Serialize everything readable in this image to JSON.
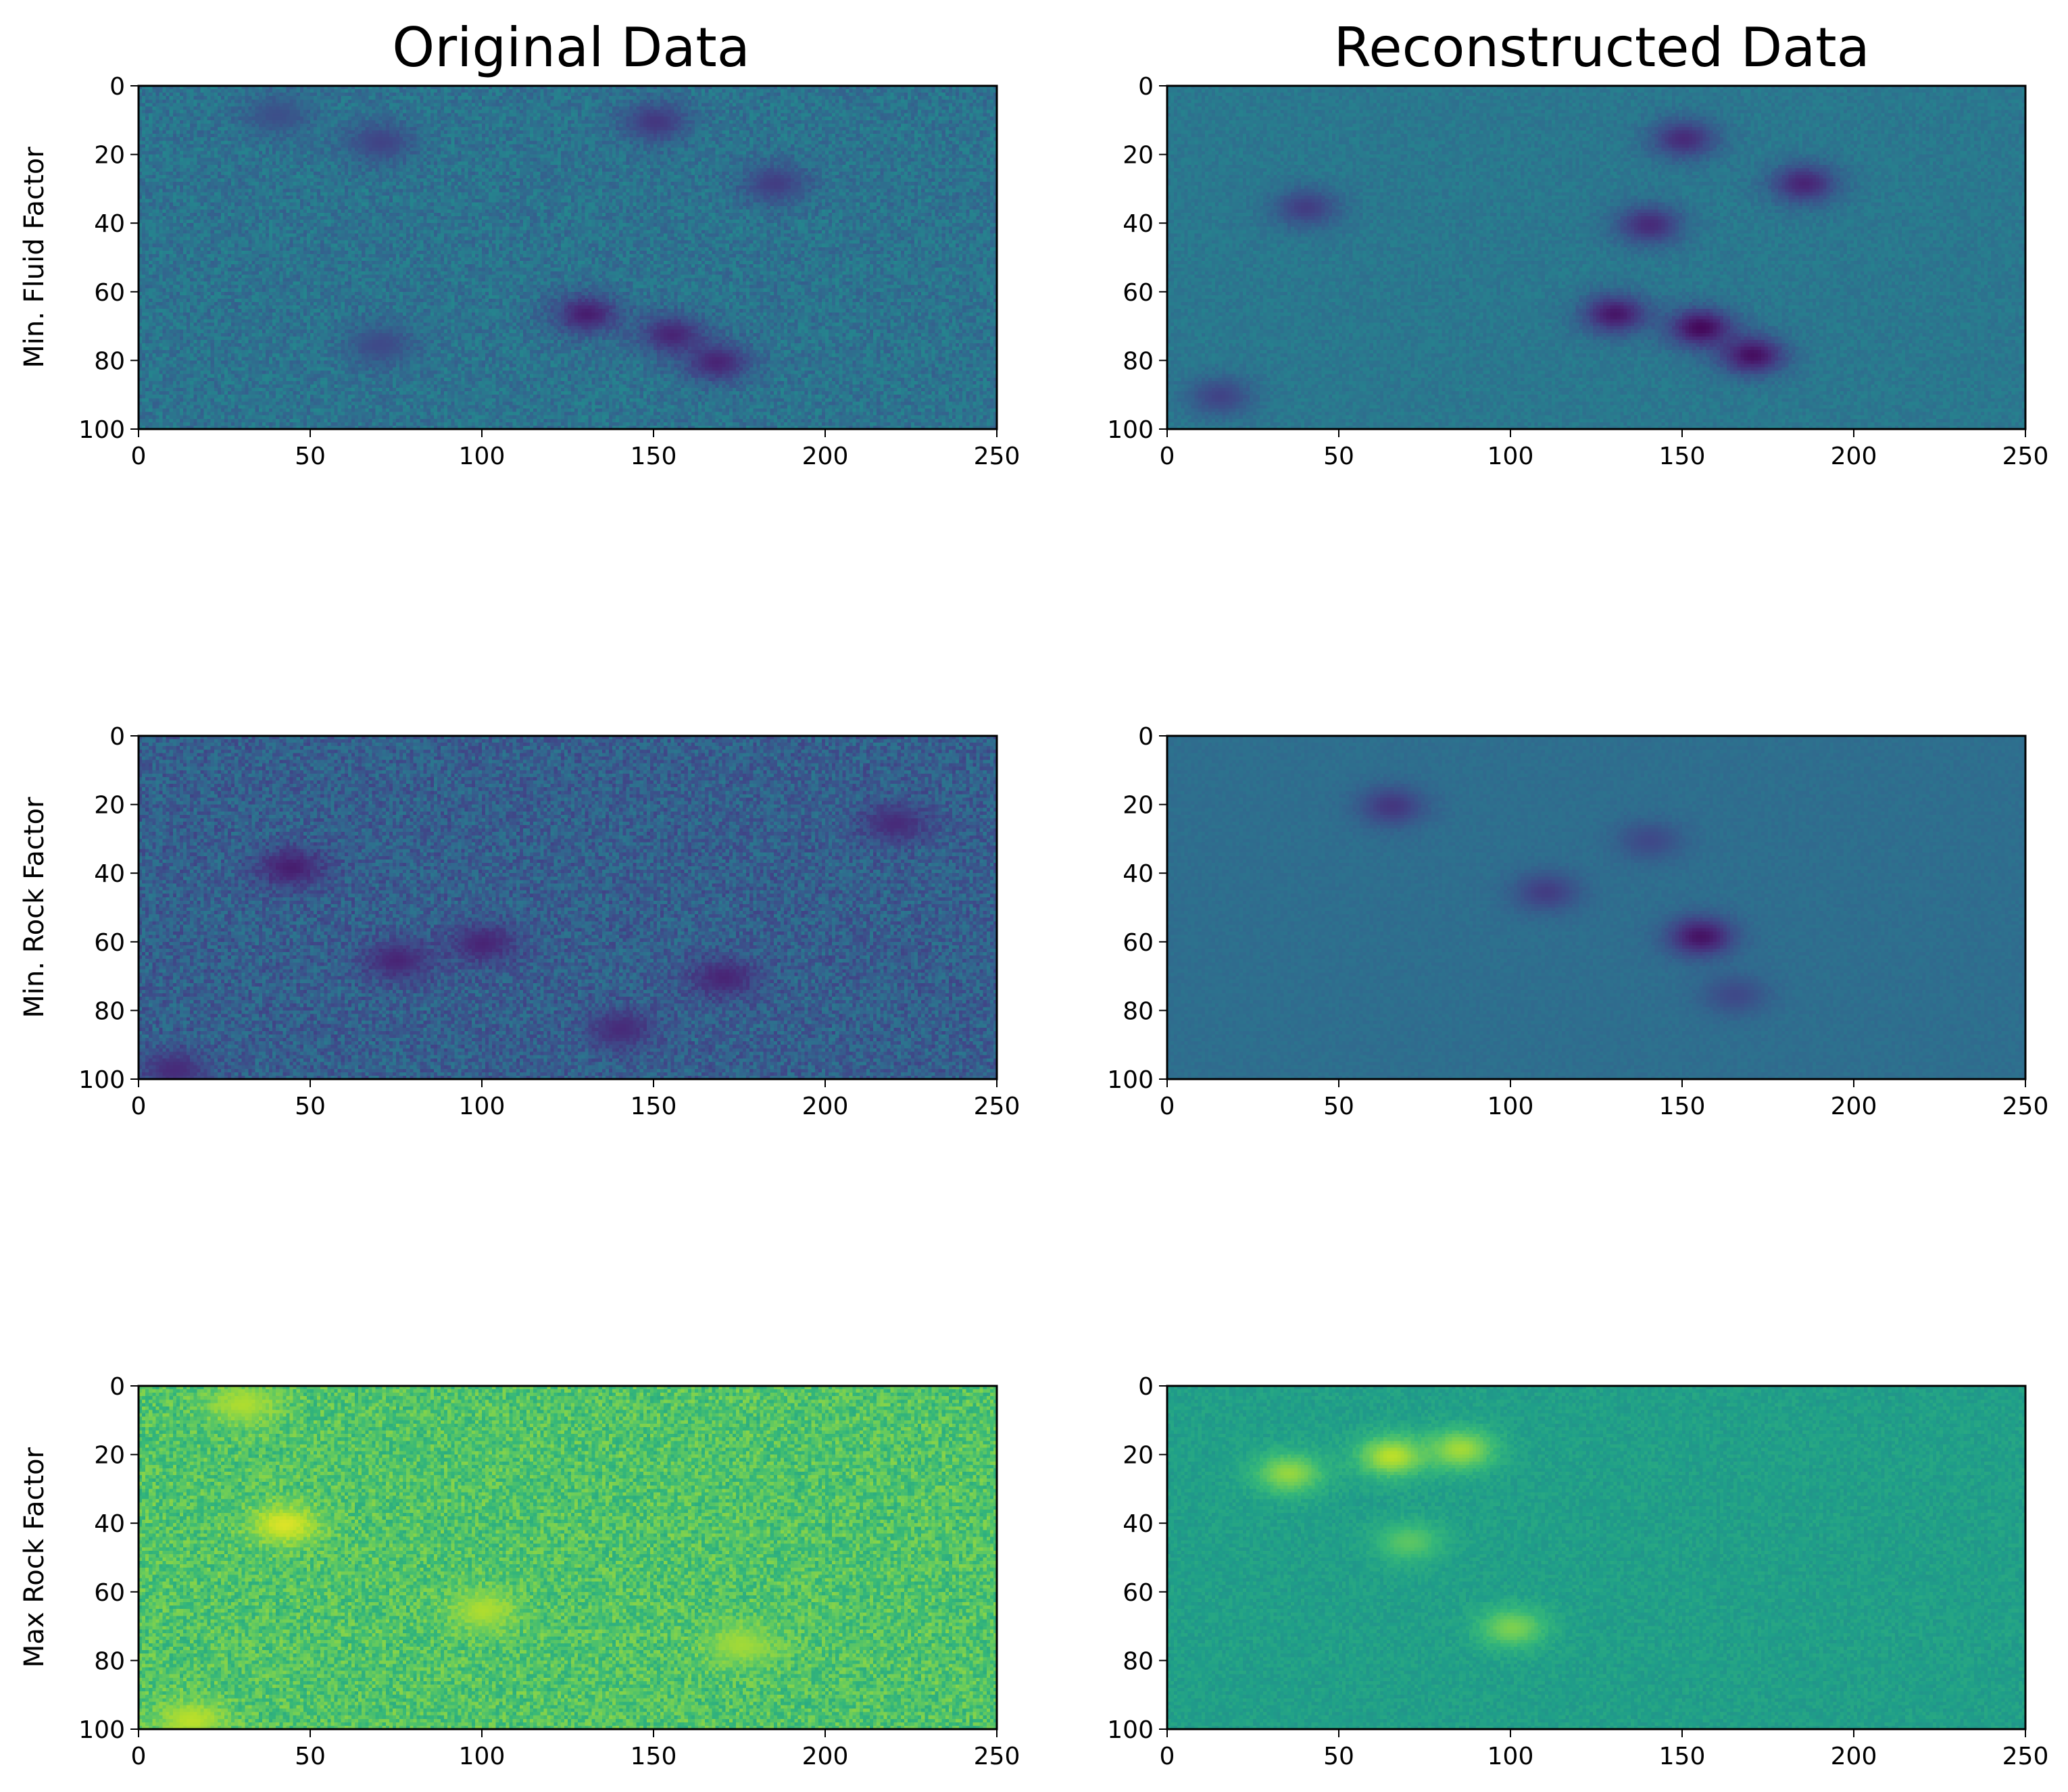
{
  "figure": {
    "column_titles": [
      "Original Data",
      "Reconstructed Data"
    ],
    "row_labels": [
      "Min. Fluid Factor",
      "Min. Rock Factor",
      "Max Rock Factor"
    ]
  },
  "chart_data": [
    {
      "type": "heatmap",
      "panel": "row1-col1",
      "title": "Original Data",
      "ylabel": "Min. Fluid Factor",
      "xlim": [
        0,
        250
      ],
      "ylim": [
        100,
        0
      ],
      "xticks": [
        "0",
        "50",
        "100",
        "150",
        "200",
        "250"
      ],
      "yticks": [
        "0",
        "20",
        "40",
        "60",
        "80",
        "100"
      ],
      "colormap": "viridis",
      "base_level": 0.38,
      "noise": 0.08,
      "features": [
        {
          "x": 150,
          "y": 10,
          "value": 0.16
        },
        {
          "x": 70,
          "y": 16,
          "value": 0.2
        },
        {
          "x": 130,
          "y": 66,
          "value": 0.08
        },
        {
          "x": 155,
          "y": 72,
          "value": 0.1
        },
        {
          "x": 168,
          "y": 80,
          "value": 0.1
        },
        {
          "x": 185,
          "y": 28,
          "value": 0.18
        },
        {
          "x": 40,
          "y": 8,
          "value": 0.24
        },
        {
          "x": 70,
          "y": 75,
          "value": 0.22
        }
      ]
    },
    {
      "type": "heatmap",
      "panel": "row1-col2",
      "title": "Reconstructed Data",
      "ylabel": "",
      "xlim": [
        0,
        250
      ],
      "ylim": [
        100,
        0
      ],
      "xticks": [
        "0",
        "50",
        "100",
        "150",
        "200",
        "250"
      ],
      "yticks": [
        "0",
        "20",
        "40",
        "60",
        "80",
        "100"
      ],
      "colormap": "viridis",
      "base_level": 0.4,
      "noise": 0.04,
      "features": [
        {
          "x": 150,
          "y": 15,
          "value": 0.12
        },
        {
          "x": 140,
          "y": 40,
          "value": 0.12
        },
        {
          "x": 130,
          "y": 66,
          "value": 0.06
        },
        {
          "x": 155,
          "y": 70,
          "value": 0.02
        },
        {
          "x": 170,
          "y": 78,
          "value": 0.04
        },
        {
          "x": 185,
          "y": 28,
          "value": 0.1
        },
        {
          "x": 40,
          "y": 35,
          "value": 0.18
        },
        {
          "x": 15,
          "y": 90,
          "value": 0.2
        }
      ]
    },
    {
      "type": "heatmap",
      "panel": "row2-col1",
      "title": "",
      "ylabel": "Min. Rock Factor",
      "xlim": [
        0,
        250
      ],
      "ylim": [
        100,
        0
      ],
      "xticks": [
        "0",
        "50",
        "100",
        "150",
        "200",
        "250"
      ],
      "yticks": [
        "0",
        "20",
        "40",
        "60",
        "80",
        "100"
      ],
      "colormap": "viridis",
      "base_level": 0.3,
      "noise": 0.1,
      "features": [
        {
          "x": 44,
          "y": 38,
          "value": 0.08
        },
        {
          "x": 75,
          "y": 65,
          "value": 0.1
        },
        {
          "x": 100,
          "y": 60,
          "value": 0.1
        },
        {
          "x": 170,
          "y": 70,
          "value": 0.1
        },
        {
          "x": 140,
          "y": 85,
          "value": 0.12
        },
        {
          "x": 220,
          "y": 25,
          "value": 0.12
        },
        {
          "x": 10,
          "y": 97,
          "value": 0.12
        }
      ]
    },
    {
      "type": "heatmap",
      "panel": "row2-col2",
      "title": "",
      "ylabel": "",
      "xlim": [
        0,
        250
      ],
      "ylim": [
        100,
        0
      ],
      "xticks": [
        "0",
        "50",
        "100",
        "150",
        "200",
        "250"
      ],
      "yticks": [
        "0",
        "20",
        "40",
        "60",
        "80",
        "100"
      ],
      "colormap": "viridis",
      "base_level": 0.36,
      "noise": 0.02,
      "features": [
        {
          "x": 65,
          "y": 20,
          "value": 0.16
        },
        {
          "x": 110,
          "y": 45,
          "value": 0.18
        },
        {
          "x": 155,
          "y": 58,
          "value": 0.05
        },
        {
          "x": 140,
          "y": 30,
          "value": 0.22
        },
        {
          "x": 165,
          "y": 75,
          "value": 0.22
        }
      ]
    },
    {
      "type": "heatmap",
      "panel": "row3-col1",
      "title": "",
      "ylabel": "Max Rock Factor",
      "xlim": [
        0,
        250
      ],
      "ylim": [
        100,
        0
      ],
      "xticks": [
        "0",
        "50",
        "100",
        "150",
        "200",
        "250"
      ],
      "yticks": [
        "0",
        "20",
        "40",
        "60",
        "80",
        "100"
      ],
      "colormap": "viridis",
      "base_level": 0.72,
      "noise": 0.1,
      "features": [
        {
          "x": 42,
          "y": 40,
          "value": 0.95
        },
        {
          "x": 100,
          "y": 65,
          "value": 0.88
        },
        {
          "x": 175,
          "y": 75,
          "value": 0.86
        },
        {
          "x": 30,
          "y": 5,
          "value": 0.88
        },
        {
          "x": 15,
          "y": 97,
          "value": 0.9
        }
      ]
    },
    {
      "type": "heatmap",
      "panel": "row3-col2",
      "title": "",
      "ylabel": "",
      "xlim": [
        0,
        250
      ],
      "ylim": [
        100,
        0
      ],
      "xticks": [
        "0",
        "50",
        "100",
        "150",
        "200",
        "250"
      ],
      "yticks": [
        "0",
        "20",
        "40",
        "60",
        "80",
        "100"
      ],
      "colormap": "viridis",
      "base_level": 0.56,
      "noise": 0.04,
      "features": [
        {
          "x": 65,
          "y": 20,
          "value": 0.9
        },
        {
          "x": 85,
          "y": 18,
          "value": 0.86
        },
        {
          "x": 35,
          "y": 25,
          "value": 0.84
        },
        {
          "x": 100,
          "y": 70,
          "value": 0.8
        },
        {
          "x": 70,
          "y": 45,
          "value": 0.74
        }
      ]
    }
  ]
}
